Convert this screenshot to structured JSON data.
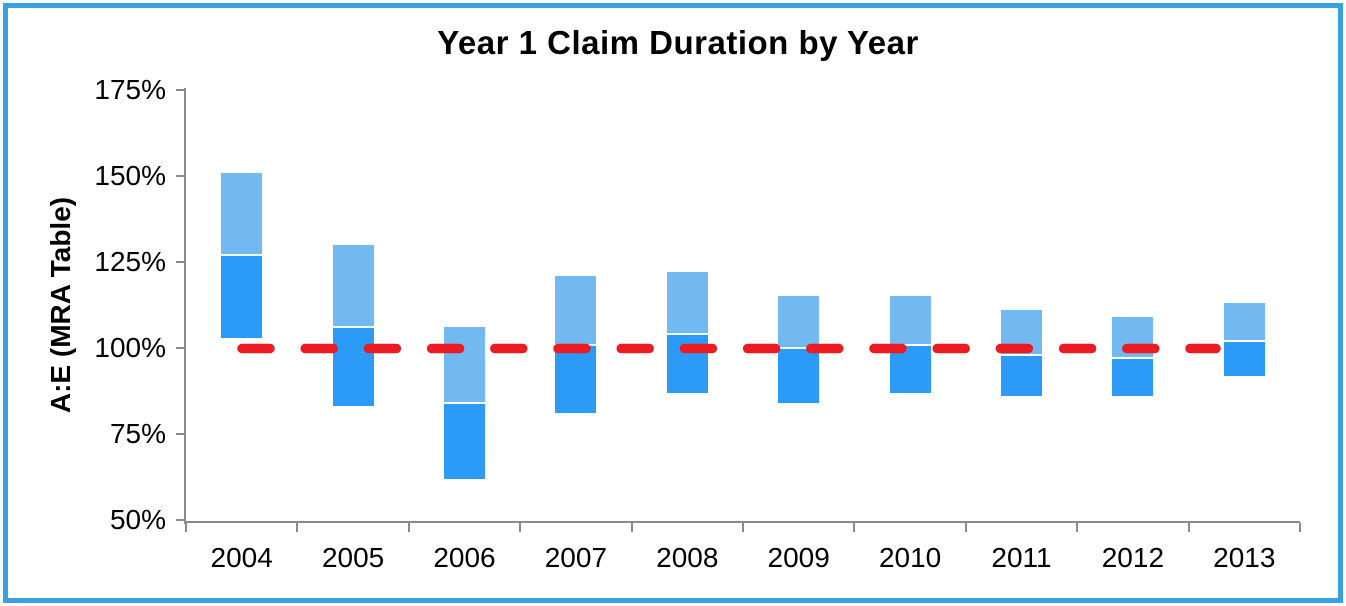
{
  "chart_data": {
    "type": "bar",
    "subtype": "floating-stacked-range-columns",
    "title": "Year 1 Claim Duration by Year",
    "ylabel": "A:E (MRA Table)",
    "xlabel": "",
    "ylim": [
      50,
      175
    ],
    "ytick_step": 25,
    "ytick_values": [
      175,
      150,
      125,
      100,
      75,
      50
    ],
    "ytick_labels": [
      "175%",
      "150%",
      "125%",
      "100%",
      "75%",
      "50%"
    ],
    "categories": [
      "2004",
      "2005",
      "2006",
      "2007",
      "2008",
      "2009",
      "2010",
      "2011",
      "2012",
      "2013"
    ],
    "grid": "off",
    "legend": "none",
    "series": [
      {
        "name": "upper-range-segment",
        "color": "#72B9F2",
        "from": [
          127,
          106,
          84,
          101,
          104,
          100,
          101,
          98,
          97,
          102
        ],
        "to": [
          151,
          130,
          106,
          121,
          122,
          115,
          115,
          111,
          109,
          113
        ]
      },
      {
        "name": "lower-range-segment",
        "color": "#2C9BF8",
        "from": [
          103,
          83,
          62,
          81,
          87,
          84,
          87,
          86,
          86,
          92
        ],
        "to": [
          127,
          106,
          84,
          101,
          104,
          100,
          101,
          98,
          97,
          102
        ]
      }
    ],
    "reference_line": {
      "value": 100,
      "label": "100%",
      "color": "#EC1B22",
      "style": "dashed-rounded"
    },
    "colors": {
      "frame_border": "#3AA0E4",
      "axis": "#8A8A8A",
      "segment_divider": "#FFFFFF",
      "text": "#000000",
      "background": "#FFFFFF"
    }
  }
}
